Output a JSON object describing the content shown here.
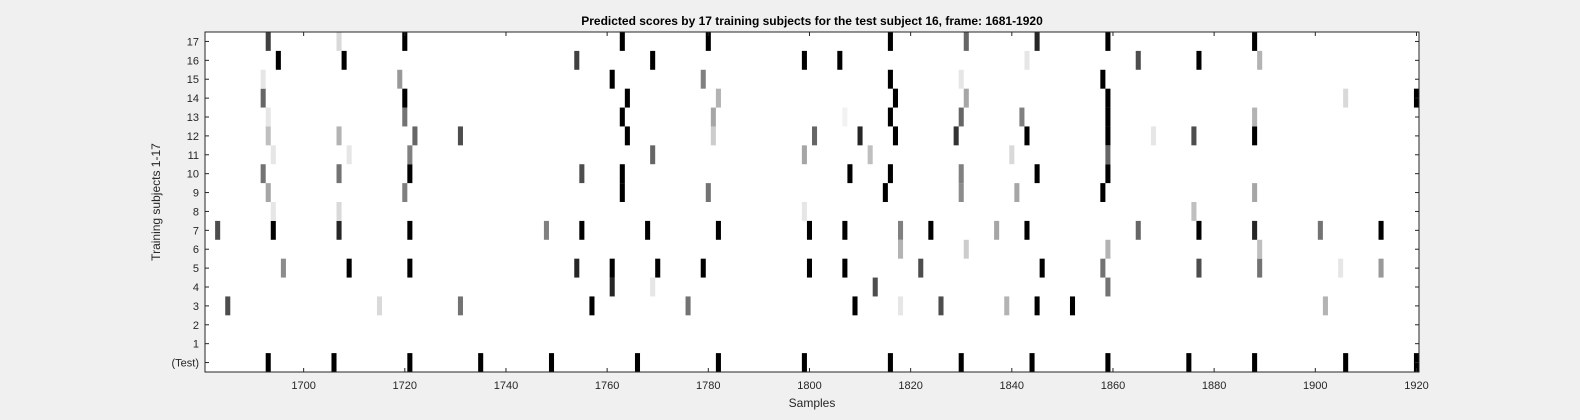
{
  "chart_data": {
    "type": "heatmap",
    "title": "Predicted scores by 17 training subjects for the test subject 16, frame: 1681-1920",
    "xlabel": "Samples",
    "ylabel": "Training subjects 1-17",
    "xlim": [
      1681,
      1920
    ],
    "x_ticks": [
      "1700",
      "1720",
      "1740",
      "1760",
      "1780",
      "1800",
      "1820",
      "1840",
      "1860",
      "1880",
      "1900",
      "1920"
    ],
    "y_tick_labels": [
      "(Test)",
      "1",
      "2",
      "3",
      "4",
      "5",
      "6",
      "7",
      "8",
      "9",
      "10",
      "11",
      "12",
      "13",
      "14",
      "15",
      "16",
      "17"
    ],
    "colormap": "white-to-black (0 = white, 1 = black)",
    "grid": false,
    "rows": [
      {
        "label": "(Test)",
        "cells": [
          [
            1693,
            1.0
          ],
          [
            1706,
            1.0
          ],
          [
            1721,
            1.0
          ],
          [
            1735,
            1.0
          ],
          [
            1749,
            1.0
          ],
          [
            1766,
            1.0
          ],
          [
            1782,
            1.0
          ],
          [
            1799,
            1.0
          ],
          [
            1816,
            1.0
          ],
          [
            1830,
            1.0
          ],
          [
            1844,
            1.0
          ],
          [
            1859,
            1.0
          ],
          [
            1875,
            1.0
          ],
          [
            1888,
            1.0
          ],
          [
            1906,
            1.0
          ],
          [
            1920,
            1.0
          ]
        ]
      },
      {
        "label": "1",
        "cells": []
      },
      {
        "label": "2",
        "cells": []
      },
      {
        "label": "3",
        "cells": [
          [
            1685,
            0.7
          ],
          [
            1715,
            0.15
          ],
          [
            1731,
            0.55
          ],
          [
            1757,
            1.0
          ],
          [
            1776,
            0.55
          ],
          [
            1809,
            1.0
          ],
          [
            1818,
            0.1
          ],
          [
            1826,
            0.7
          ],
          [
            1839,
            0.3
          ],
          [
            1845,
            1.0
          ],
          [
            1852,
            1.0
          ],
          [
            1902,
            0.3
          ]
        ]
      },
      {
        "label": "4",
        "cells": [
          [
            1761,
            0.85
          ],
          [
            1769,
            0.1
          ],
          [
            1813,
            0.7
          ],
          [
            1859,
            0.55
          ]
        ]
      },
      {
        "label": "5",
        "cells": [
          [
            1696,
            0.45
          ],
          [
            1709,
            1.0
          ],
          [
            1721,
            1.0
          ],
          [
            1754,
            0.85
          ],
          [
            1761,
            1.0
          ],
          [
            1770,
            1.0
          ],
          [
            1779,
            1.0
          ],
          [
            1800,
            1.0
          ],
          [
            1807,
            1.0
          ],
          [
            1822,
            0.7
          ],
          [
            1846,
            1.0
          ],
          [
            1858,
            0.55
          ],
          [
            1877,
            0.7
          ],
          [
            1889,
            0.55
          ],
          [
            1905,
            0.1
          ],
          [
            1913,
            0.4
          ]
        ]
      },
      {
        "label": "6",
        "cells": [
          [
            1818,
            0.3
          ],
          [
            1831,
            0.2
          ],
          [
            1859,
            0.3
          ],
          [
            1889,
            0.25
          ]
        ]
      },
      {
        "label": "7",
        "cells": [
          [
            1683,
            0.7
          ],
          [
            1694,
            1.0
          ],
          [
            1707,
            0.85
          ],
          [
            1721,
            1.0
          ],
          [
            1748,
            0.5
          ],
          [
            1755,
            1.0
          ],
          [
            1768,
            1.0
          ],
          [
            1782,
            1.0
          ],
          [
            1800,
            1.0
          ],
          [
            1807,
            1.0
          ],
          [
            1818,
            0.5
          ],
          [
            1824,
            1.0
          ],
          [
            1837,
            0.35
          ],
          [
            1843,
            1.0
          ],
          [
            1865,
            0.6
          ],
          [
            1877,
            1.0
          ],
          [
            1888,
            0.85
          ],
          [
            1901,
            0.55
          ],
          [
            1913,
            1.0
          ]
        ]
      },
      {
        "label": "8",
        "cells": [
          [
            1694,
            0.1
          ],
          [
            1707,
            0.15
          ],
          [
            1799,
            0.1
          ],
          [
            1876,
            0.25
          ]
        ]
      },
      {
        "label": "9",
        "cells": [
          [
            1693,
            0.35
          ],
          [
            1720,
            0.5
          ],
          [
            1763,
            1.0
          ],
          [
            1780,
            0.55
          ],
          [
            1815,
            1.0
          ],
          [
            1830,
            0.45
          ],
          [
            1841,
            0.35
          ],
          [
            1858,
            1.0
          ],
          [
            1888,
            0.35
          ]
        ]
      },
      {
        "label": "10",
        "cells": [
          [
            1692,
            0.55
          ],
          [
            1707,
            0.55
          ],
          [
            1721,
            1.0
          ],
          [
            1755,
            0.7
          ],
          [
            1763,
            1.0
          ],
          [
            1808,
            1.0
          ],
          [
            1816,
            1.0
          ],
          [
            1830,
            0.5
          ],
          [
            1845,
            1.0
          ],
          [
            1859,
            1.0
          ]
        ]
      },
      {
        "label": "11",
        "cells": [
          [
            1694,
            0.1
          ],
          [
            1709,
            0.1
          ],
          [
            1721,
            0.5
          ],
          [
            1769,
            0.6
          ],
          [
            1799,
            0.35
          ],
          [
            1812,
            0.25
          ],
          [
            1840,
            0.15
          ],
          [
            1859,
            0.6
          ]
        ]
      },
      {
        "label": "12",
        "cells": [
          [
            1693,
            0.25
          ],
          [
            1707,
            0.3
          ],
          [
            1722,
            0.6
          ],
          [
            1731,
            0.7
          ],
          [
            1764,
            1.0
          ],
          [
            1781,
            0.2
          ],
          [
            1801,
            0.6
          ],
          [
            1810,
            0.85
          ],
          [
            1817,
            1.0
          ],
          [
            1829,
            0.8
          ],
          [
            1843,
            1.0
          ],
          [
            1859,
            1.0
          ],
          [
            1868,
            0.1
          ],
          [
            1876,
            0.7
          ],
          [
            1888,
            1.0
          ]
        ]
      },
      {
        "label": "13",
        "cells": [
          [
            1693,
            0.1
          ],
          [
            1720,
            0.55
          ],
          [
            1763,
            1.0
          ],
          [
            1781,
            0.35
          ],
          [
            1807,
            0.05
          ],
          [
            1816,
            1.0
          ],
          [
            1830,
            0.6
          ],
          [
            1842,
            0.5
          ],
          [
            1859,
            1.0
          ],
          [
            1888,
            0.3
          ]
        ]
      },
      {
        "label": "14",
        "cells": [
          [
            1692,
            0.6
          ],
          [
            1720,
            1.0
          ],
          [
            1764,
            1.0
          ],
          [
            1782,
            0.3
          ],
          [
            1817,
            1.0
          ],
          [
            1831,
            0.35
          ],
          [
            1859,
            1.0
          ],
          [
            1906,
            0.15
          ],
          [
            1920,
            1.0
          ]
        ]
      },
      {
        "label": "15",
        "cells": [
          [
            1692,
            0.1
          ],
          [
            1719,
            0.4
          ],
          [
            1761,
            1.0
          ],
          [
            1779,
            0.5
          ],
          [
            1816,
            1.0
          ],
          [
            1830,
            0.1
          ],
          [
            1858,
            1.0
          ]
        ]
      },
      {
        "label": "16",
        "cells": [
          [
            1695,
            1.0
          ],
          [
            1708,
            1.0
          ],
          [
            1754,
            0.75
          ],
          [
            1769,
            1.0
          ],
          [
            1799,
            1.0
          ],
          [
            1806,
            1.0
          ],
          [
            1843,
            0.1
          ],
          [
            1865,
            0.7
          ],
          [
            1877,
            1.0
          ],
          [
            1889,
            0.3
          ]
        ]
      },
      {
        "label": "17",
        "cells": [
          [
            1693,
            0.75
          ],
          [
            1707,
            0.15
          ],
          [
            1720,
            1.0
          ],
          [
            1763,
            1.0
          ],
          [
            1780,
            1.0
          ],
          [
            1816,
            1.0
          ],
          [
            1831,
            0.6
          ],
          [
            1845,
            0.85
          ],
          [
            1859,
            1.0
          ],
          [
            1888,
            1.0
          ]
        ]
      }
    ]
  }
}
